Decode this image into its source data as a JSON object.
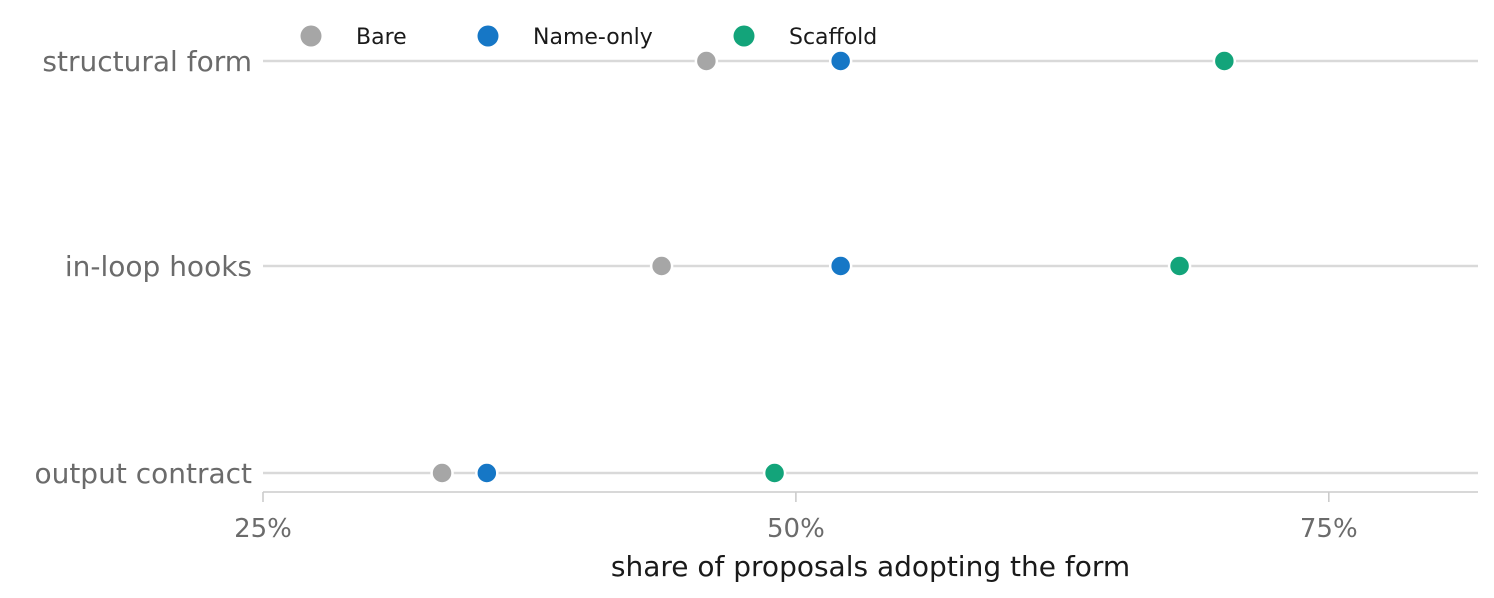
{
  "chart_data": {
    "type": "scatter",
    "subtype": "dot-plot",
    "categories": [
      "structural form",
      "in-loop hooks",
      "output contract"
    ],
    "series": [
      {
        "name": "Bare",
        "color": "#a6a6a6",
        "values": [
          45.8,
          43.7,
          33.4
        ]
      },
      {
        "name": "Name-only",
        "color": "#1677c6",
        "values": [
          52.1,
          52.1,
          35.5
        ]
      },
      {
        "name": "Scaffold",
        "color": "#13a47a",
        "values": [
          70.1,
          68.0,
          49.0
        ]
      }
    ],
    "xlabel": "share of proposals adopting the form",
    "xlim": [
      25,
      82
    ],
    "xticks": [
      25,
      50,
      75
    ],
    "xtick_labels": [
      "25%",
      "50%",
      "75%"
    ],
    "legend": {
      "placement": "top-left",
      "orientation": "horizontal"
    },
    "grid": false
  }
}
